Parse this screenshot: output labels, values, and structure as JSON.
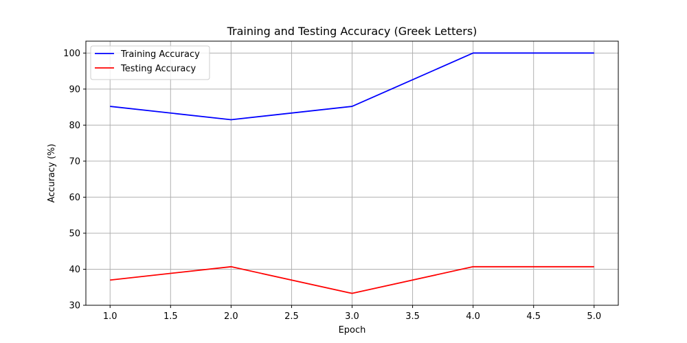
{
  "chart_data": {
    "type": "line",
    "title": "Training and Testing Accuracy (Greek Letters)",
    "xlabel": "Epoch",
    "ylabel": "Accuracy (%)",
    "x": [
      1,
      2,
      3,
      4,
      5
    ],
    "xlim": [
      0.8,
      5.2
    ],
    "ylim": [
      30,
      103.3
    ],
    "xticks": [
      "1.0",
      "1.5",
      "2.0",
      "2.5",
      "3.0",
      "3.5",
      "4.0",
      "4.5",
      "5.0"
    ],
    "yticks": [
      "30",
      "40",
      "50",
      "60",
      "70",
      "80",
      "90",
      "100"
    ],
    "grid": true,
    "legend_position": "top-left",
    "series": [
      {
        "name": "Training Accuracy",
        "color": "#0000ff",
        "values": [
          85.2,
          81.5,
          85.2,
          100,
          100
        ]
      },
      {
        "name": "Testing Accuracy",
        "color": "#ff0000",
        "values": [
          37.0,
          40.7,
          33.3,
          40.7,
          40.7
        ]
      }
    ]
  }
}
